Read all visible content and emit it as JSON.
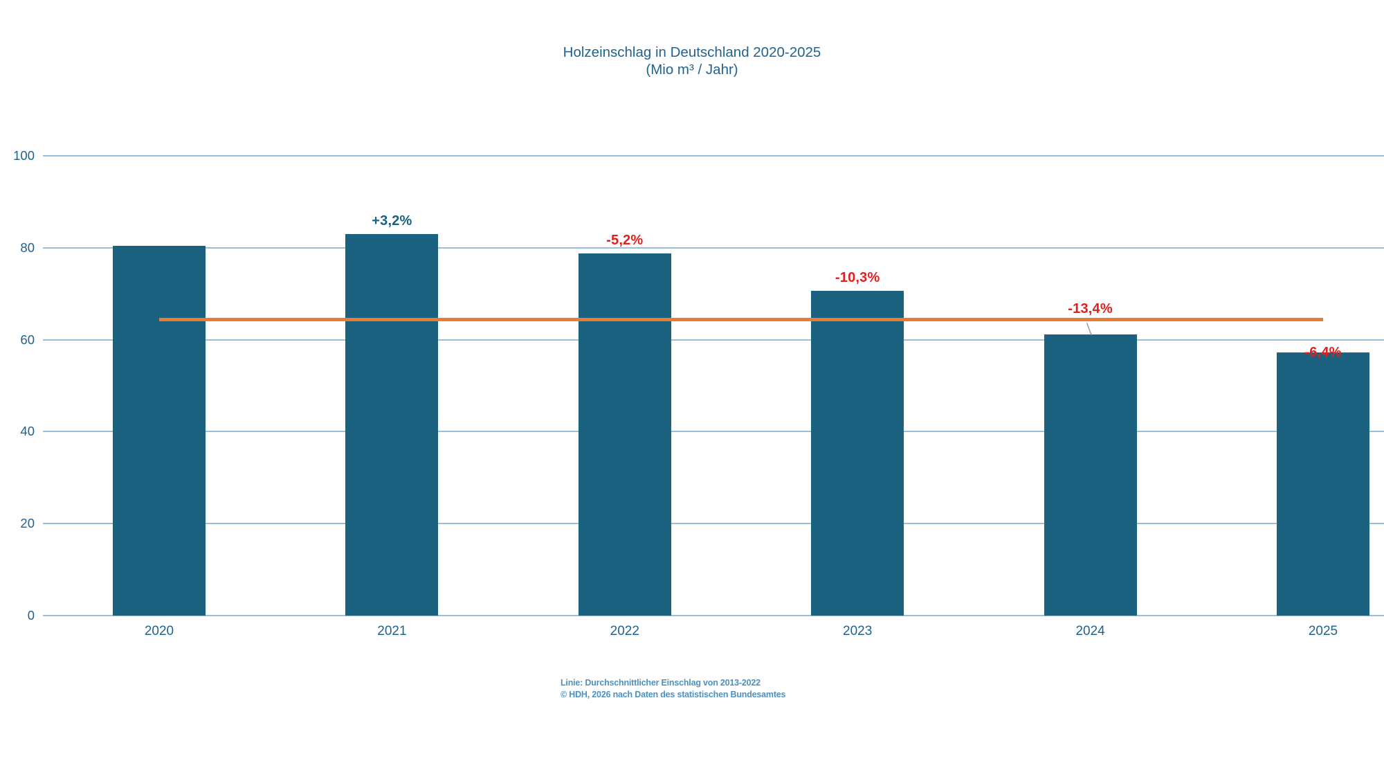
{
  "chart_data": {
    "type": "bar",
    "title": "Holzeinschlag in Deutschland 2020-2025",
    "subtitle": "(Mio m³ / Jahr)",
    "categories": [
      "2020",
      "2021",
      "2022",
      "2023",
      "2024",
      "2025"
    ],
    "values": [
      80.4,
      83.0,
      78.7,
      70.6,
      61.1,
      57.2
    ],
    "change_labels": [
      null,
      {
        "text": "+3,2%",
        "tone": "positive",
        "placement": "above"
      },
      {
        "text": "-5,2%",
        "tone": "negative",
        "placement": "above"
      },
      {
        "text": "-10,3%",
        "tone": "negative",
        "placement": "above"
      },
      {
        "text": "-13,4%",
        "tone": "negative",
        "placement": "raised-with-leader"
      },
      {
        "text": "-6,4%",
        "tone": "negative",
        "placement": "on-bar-top"
      }
    ],
    "average_line": {
      "value": 64.4,
      "start_category": "2020",
      "end_category": "2025",
      "description": "Linie: Durchschnittlicher Einschlag von 2013-2022"
    },
    "ylim": [
      0,
      100
    ],
    "yticks": [
      0,
      20,
      40,
      60,
      80,
      100
    ],
    "grid": true,
    "legend": "none"
  },
  "footer": {
    "line1": "Linie: Durchschnittlicher Einschlag von 2013-2022",
    "line2": "© HDH, 2026 nach Daten des statistischen Bundesamtes"
  },
  "colors": {
    "bar": "#1B6180",
    "positive_label": "#1B6180",
    "negative_label": "#E51D1D",
    "average_line": "#E87C30",
    "gridline": "#96C0DA",
    "axis_text": "#1F628E",
    "title_text": "#20638F",
    "footer_text": "#4B91C1",
    "leader_line": "#999999",
    "background": "#FFFFFF"
  }
}
